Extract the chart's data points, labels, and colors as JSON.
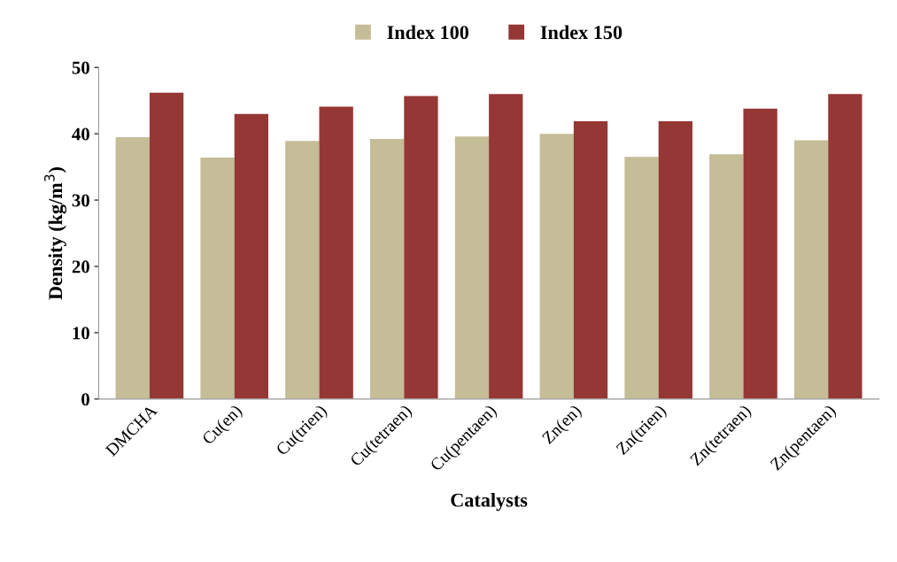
{
  "chart_data": {
    "type": "bar",
    "xlabel": "Catalysts",
    "ylabel": "Density (kg/m$^{3}$)",
    "categories": [
      "DMCHA",
      "Cu(en)",
      "Cu(trien)",
      "Cu(tetraen)",
      "Cu(pentaen)",
      "Zn(en)",
      "Zn(trien)",
      "Zn(tetraen)",
      "Zn(pentaen)"
    ],
    "series": [
      {
        "name": "Index 100",
        "color": "#c4bd97",
        "values": [
          39.5,
          36.4,
          38.9,
          39.2,
          39.6,
          40.0,
          36.5,
          36.9,
          39.0
        ]
      },
      {
        "name": "Index 150",
        "color": "#953735",
        "values": [
          46.2,
          43.0,
          44.1,
          45.7,
          46.0,
          41.9,
          41.9,
          43.8,
          46.0
        ]
      }
    ],
    "ylim": [
      0,
      50
    ],
    "yticks": [
      0,
      10,
      20,
      30,
      40,
      50
    ],
    "grid": false,
    "legend": "top"
  }
}
